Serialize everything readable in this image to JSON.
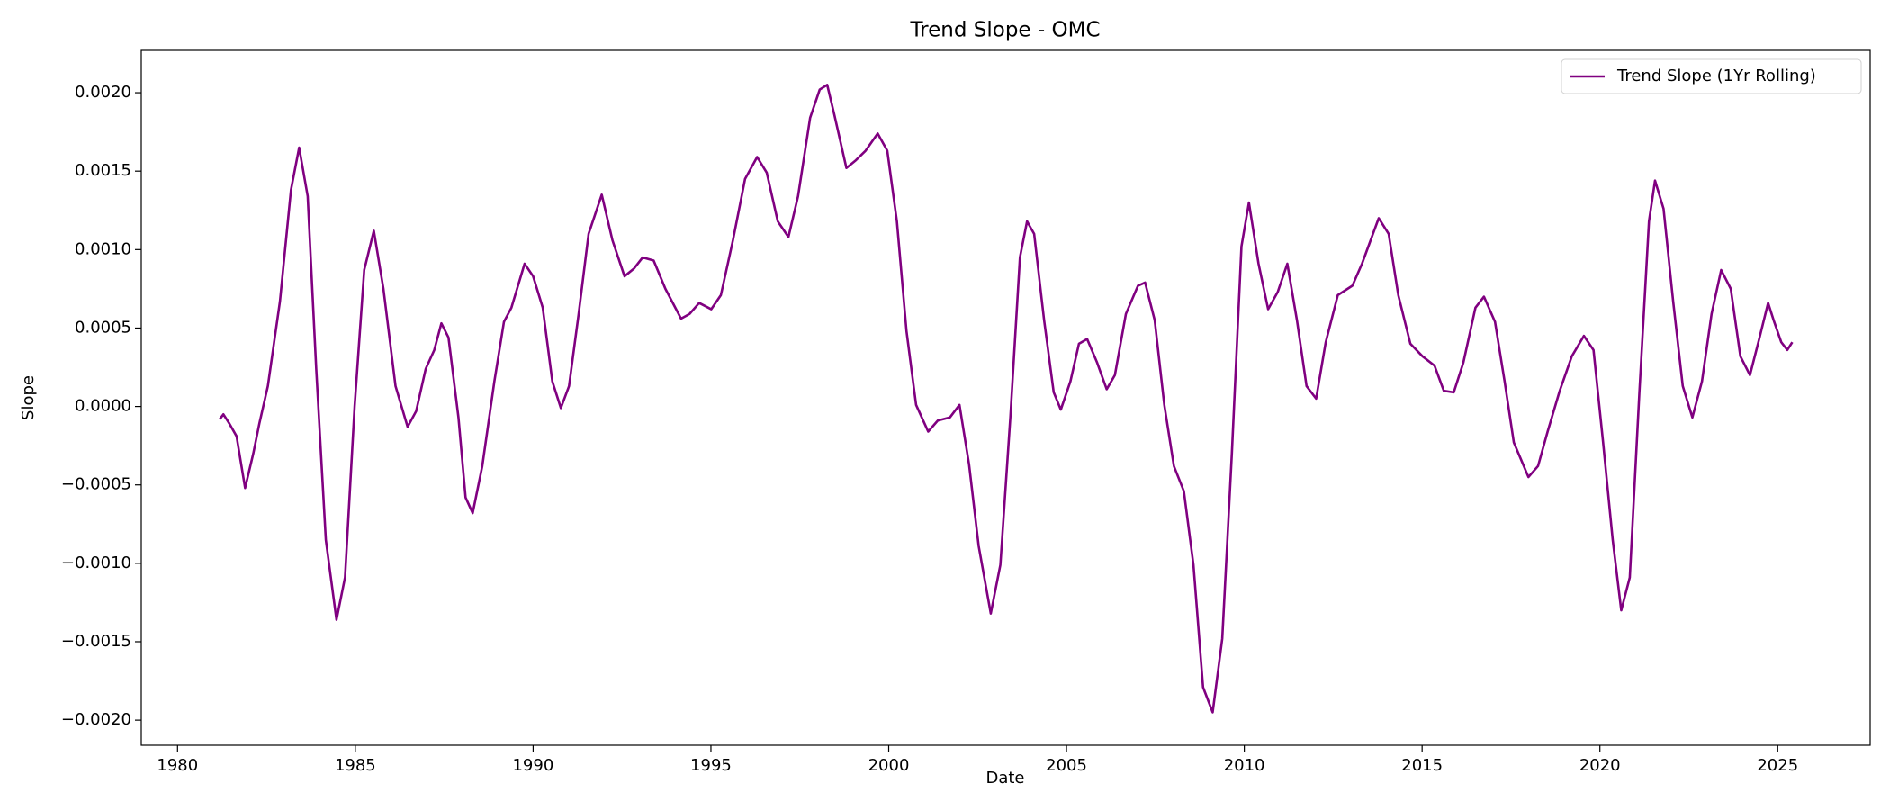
{
  "chart_data": {
    "type": "line",
    "title": "Trend Slope - OMC",
    "xlabel": "Date",
    "ylabel": "Slope",
    "legend": "upper right",
    "grid": false,
    "xlim": [
      1978.98,
      2027.6
    ],
    "ylim": [
      -0.00216,
      0.00227
    ],
    "xticks": [
      1980,
      1985,
      1990,
      1995,
      2000,
      2005,
      2010,
      2015,
      2020,
      2025
    ],
    "yticks": [
      {
        "value": -0.002,
        "label": "−0.0020"
      },
      {
        "value": -0.0015,
        "label": "−0.0015"
      },
      {
        "value": -0.001,
        "label": "−0.0010"
      },
      {
        "value": -0.0005,
        "label": "−0.0005"
      },
      {
        "value": 0,
        "label": "0.0000"
      },
      {
        "value": 0.0005,
        "label": "0.0005"
      },
      {
        "value": 0.001,
        "label": "0.0010"
      },
      {
        "value": 0.0015,
        "label": "0.0015"
      },
      {
        "value": 0.002,
        "label": "0.0020"
      }
    ],
    "x": [
      1981.19,
      1981.29,
      1981.46,
      1981.66,
      1981.9,
      1982.13,
      1982.3,
      1982.54,
      1982.88,
      1983.19,
      1983.42,
      1983.66,
      1983.9,
      1984.17,
      1984.47,
      1984.71,
      1984.98,
      1985.25,
      1985.52,
      1985.79,
      1986.13,
      1986.47,
      1986.71,
      1986.98,
      1987.22,
      1987.42,
      1987.62,
      1987.9,
      1988.1,
      1988.3,
      1988.57,
      1988.91,
      1989.18,
      1989.39,
      1989.76,
      1990.0,
      1990.27,
      1990.54,
      1990.78,
      1991.01,
      1991.28,
      1991.56,
      1991.93,
      1992.23,
      1992.57,
      1992.84,
      1993.08,
      1993.39,
      1993.72,
      1994.16,
      1994.4,
      1994.67,
      1995.01,
      1995.28,
      1995.62,
      1995.96,
      1996.3,
      1996.57,
      1996.88,
      1997.18,
      1997.45,
      1997.79,
      1998.06,
      1998.27,
      1998.47,
      1998.81,
      1999.08,
      1999.35,
      1999.69,
      1999.96,
      2000.23,
      2000.5,
      2000.77,
      2001.11,
      2001.38,
      2001.72,
      2001.99,
      2002.26,
      2002.53,
      2002.87,
      2003.14,
      2003.42,
      2003.69,
      2003.89,
      2004.09,
      2004.37,
      2004.64,
      2004.84,
      2005.11,
      2005.35,
      2005.58,
      2005.86,
      2006.13,
      2006.36,
      2006.67,
      2007.01,
      2007.21,
      2007.48,
      2007.75,
      2008.02,
      2008.3,
      2008.57,
      2008.84,
      2009.11,
      2009.38,
      2009.65,
      2009.92,
      2010.13,
      2010.4,
      2010.67,
      2010.94,
      2011.21,
      2011.48,
      2011.75,
      2012.02,
      2012.29,
      2012.63,
      2013.04,
      2013.31,
      2013.78,
      2014.06,
      2014.33,
      2014.67,
      2015.01,
      2015.35,
      2015.61,
      2015.89,
      2016.16,
      2016.5,
      2016.74,
      2017.05,
      2017.32,
      2017.58,
      2017.99,
      2018.26,
      2018.53,
      2018.87,
      2019.21,
      2019.55,
      2019.82,
      2020.09,
      2020.36,
      2020.6,
      2020.84,
      2021.11,
      2021.38,
      2021.55,
      2021.79,
      2022.06,
      2022.33,
      2022.6,
      2022.87,
      2023.14,
      2023.41,
      2023.68,
      2023.95,
      2024.22,
      2024.49,
      2024.73,
      2024.9,
      2025.1,
      2025.27,
      2025.41
    ],
    "series": [
      {
        "name": "Trend Slope (1Yr Rolling)",
        "color": "#800080",
        "values": [
          -8e-05,
          -5e-05,
          -0.00011,
          -0.00019,
          -0.00052,
          -0.0003,
          -0.00011,
          0.00013,
          0.00067,
          0.00138,
          0.00165,
          0.00134,
          0.00024,
          -0.00085,
          -0.00136,
          -0.00109,
          0.0,
          0.00087,
          0.00112,
          0.00075,
          0.00013,
          -0.00013,
          -3e-05,
          0.00024,
          0.00036,
          0.00053,
          0.00044,
          -7e-05,
          -0.00058,
          -0.00068,
          -0.00038,
          0.00016,
          0.00054,
          0.00063,
          0.00091,
          0.00083,
          0.00063,
          0.00016,
          -1e-05,
          0.00013,
          0.00059,
          0.0011,
          0.00135,
          0.00106,
          0.00083,
          0.00088,
          0.00095,
          0.00093,
          0.00075,
          0.00056,
          0.00059,
          0.00066,
          0.00062,
          0.00071,
          0.00106,
          0.00145,
          0.00159,
          0.00149,
          0.00118,
          0.00108,
          0.00134,
          0.00184,
          0.00202,
          0.00205,
          0.00186,
          0.00152,
          0.00157,
          0.00163,
          0.00174,
          0.00163,
          0.00118,
          0.00048,
          1e-05,
          -0.00016,
          -9e-05,
          -7e-05,
          1e-05,
          -0.00037,
          -0.00089,
          -0.00132,
          -0.00101,
          -7e-05,
          0.00095,
          0.00118,
          0.0011,
          0.00055,
          9e-05,
          -2e-05,
          0.00016,
          0.0004,
          0.00043,
          0.00028,
          0.00011,
          0.0002,
          0.00059,
          0.00077,
          0.00079,
          0.00055,
          1e-05,
          -0.00038,
          -0.00054,
          -0.00101,
          -0.00179,
          -0.00195,
          -0.00148,
          -0.0003,
          0.00102,
          0.0013,
          0.00091,
          0.00062,
          0.00073,
          0.00091,
          0.00055,
          0.00013,
          5e-05,
          0.00041,
          0.00071,
          0.00077,
          0.00091,
          0.0012,
          0.0011,
          0.00071,
          0.0004,
          0.00032,
          0.00026,
          0.0001,
          9e-05,
          0.00028,
          0.00063,
          0.0007,
          0.00054,
          0.00016,
          -0.00023,
          -0.00045,
          -0.00038,
          -0.00016,
          0.0001,
          0.00032,
          0.00045,
          0.00036,
          -0.00023,
          -0.00085,
          -0.0013,
          -0.00109,
          9e-05,
          0.00118,
          0.00144,
          0.00126,
          0.00067,
          0.00013,
          -7e-05,
          0.00016,
          0.00059,
          0.00087,
          0.00075,
          0.00032,
          0.0002,
          0.00044,
          0.00066,
          0.00054,
          0.00041,
          0.00036,
          0.00041
        ]
      }
    ]
  }
}
